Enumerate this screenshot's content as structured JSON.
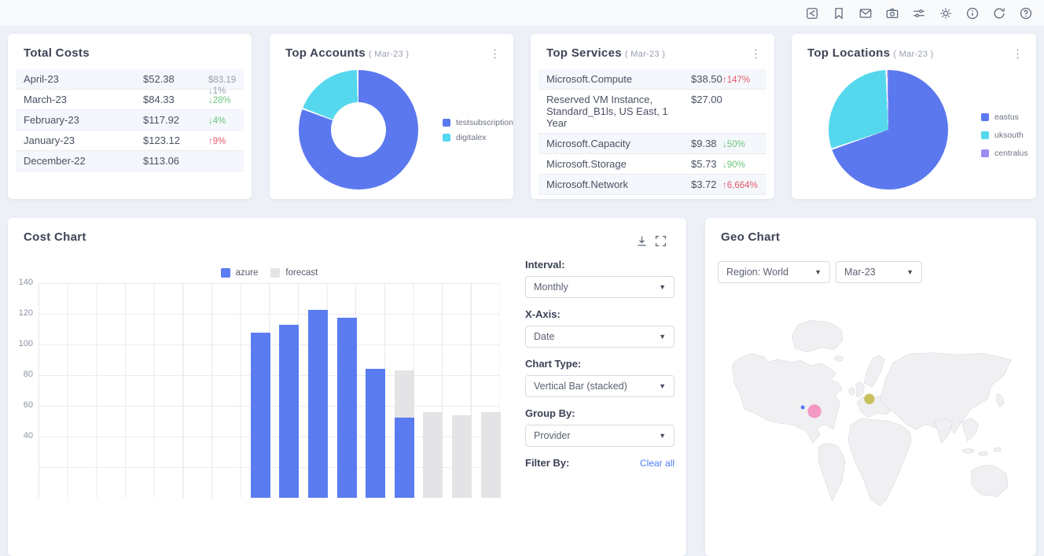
{
  "toolbar": {
    "icons": [
      "share",
      "bookmark",
      "mail",
      "camera",
      "sliders",
      "settings",
      "info",
      "refresh",
      "help"
    ]
  },
  "cards": {
    "total_costs": {
      "title": "Total Costs",
      "rows": [
        {
          "label": "April-23",
          "value": "$52.38",
          "extra": "$83.19",
          "delta": "↓1%",
          "delta_color": "gray"
        },
        {
          "label": "March-23",
          "value": "$84.33",
          "delta": "↓28%",
          "delta_color": "green"
        },
        {
          "label": "February-23",
          "value": "$117.92",
          "delta": "↓4%",
          "delta_color": "green"
        },
        {
          "label": "January-23",
          "value": "$123.12",
          "delta": "↑9%",
          "delta_color": "red"
        },
        {
          "label": "December-22",
          "value": "$113.06",
          "delta": "",
          "delta_color": "gray"
        }
      ]
    },
    "top_accounts": {
      "title": "Top Accounts",
      "period": "( Mar-23 )"
    },
    "top_services": {
      "title": "Top Services",
      "period": "( Mar-23 )",
      "rows": [
        {
          "label": "Microsoft.Compute",
          "value": "$38.50",
          "delta": "↑147%",
          "delta_color": "red"
        },
        {
          "label": "Reserved VM Instance, Standard_B1ls, US East, 1 Year",
          "value": "$27.00",
          "delta": "",
          "delta_color": "gray"
        },
        {
          "label": "Microsoft.Capacity",
          "value": "$9.38",
          "delta": "↓50%",
          "delta_color": "green"
        },
        {
          "label": "Microsoft.Storage",
          "value": "$5.73",
          "delta": "↓90%",
          "delta_color": "green"
        },
        {
          "label": "Microsoft.Network",
          "value": "$3.72",
          "delta": "↑6,664%",
          "delta_color": "red"
        }
      ]
    },
    "top_locations": {
      "title": "Top Locations",
      "period": "( Mar-23 )"
    },
    "cost_chart": {
      "title": "Cost Chart",
      "controls": [
        {
          "label": "Interval:",
          "value": "Monthly"
        },
        {
          "label": "X-Axis:",
          "value": "Date"
        },
        {
          "label": "Chart Type:",
          "value": "Vertical Bar (stacked)"
        },
        {
          "label": "Group By:",
          "value": "Provider"
        }
      ],
      "filter_label": "Filter By:",
      "clear_all": "Clear all"
    },
    "geo_chart": {
      "title": "Geo Chart",
      "region_value": "Region: World",
      "period_value": "Mar-23"
    }
  },
  "chart_data": [
    {
      "id": "top_accounts_donut",
      "type": "pie",
      "donut": true,
      "title": "Top Accounts ( Mar-23 )",
      "series": [
        {
          "name": "testsubscription",
          "percent": 81,
          "color": "#5b78ee"
        },
        {
          "name": "digitalex",
          "percent": 19,
          "color": "#55d8ee"
        }
      ],
      "legend_position": "right"
    },
    {
      "id": "top_locations_pie",
      "type": "pie",
      "donut": false,
      "title": "Top Locations ( Mar-23 )",
      "series": [
        {
          "name": "eastus",
          "percent": 70,
          "color": "#5b78ee"
        },
        {
          "name": "uksouth",
          "percent": 29.7,
          "color": "#55d8ee"
        },
        {
          "name": "centralus",
          "percent": 0.3,
          "color": "#9e8cf2"
        }
      ],
      "legend_position": "right"
    },
    {
      "id": "cost_chart",
      "type": "bar",
      "stacked": true,
      "title": "Cost Chart",
      "x_labels_visible": false,
      "categories": [
        "",
        "",
        "",
        "",
        "",
        "",
        "",
        "",
        "",
        "",
        "",
        "",
        "",
        "",
        "",
        ""
      ],
      "series": [
        {
          "name": "azure",
          "color": "#5b7cf0",
          "values": [
            0,
            0,
            0,
            0,
            0,
            0,
            0,
            107.5,
            113,
            122.5,
            117.5,
            84,
            52.4,
            0,
            0,
            0
          ]
        },
        {
          "name": "forecast",
          "color": "#e4e4e6",
          "values": [
            0,
            0,
            0,
            0,
            0,
            0,
            0,
            0,
            0,
            0,
            0,
            0,
            30.8,
            56,
            54,
            56
          ]
        }
      ],
      "ylim": [
        0,
        140
      ],
      "yticks": [
        140,
        120,
        100,
        80,
        60,
        40
      ],
      "grid": true,
      "legend_position": "top"
    },
    {
      "id": "geo_chart",
      "type": "map",
      "region": "World",
      "period": "Mar-23",
      "markers": [
        {
          "name": "eastus",
          "color": "#f48fc0",
          "size": "large"
        },
        {
          "name": "centralus",
          "color": "#4e6df2",
          "size": "small"
        },
        {
          "name": "uksouth",
          "color": "#c3ba4a",
          "size": "medium"
        }
      ]
    }
  ],
  "colors": {
    "accent_blue": "#5b7cf0",
    "cyan": "#55d8ee",
    "purple": "#9e8cf2",
    "forecast_gray": "#e4e4e6",
    "positive_green": "#6ec57d",
    "negative_red": "#e8596a",
    "muted_gray": "#98a0ad",
    "link_blue": "#4f7df9"
  }
}
